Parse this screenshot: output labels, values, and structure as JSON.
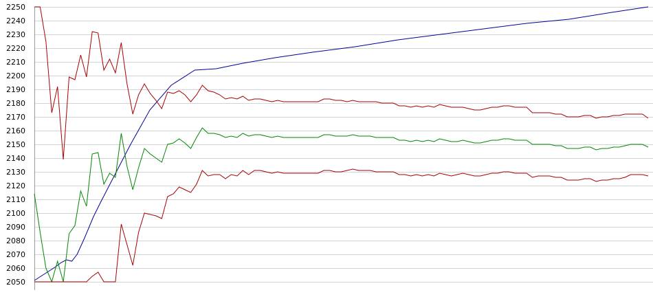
{
  "chart_data": {
    "type": "line",
    "title": "",
    "xlabel": "",
    "ylabel": "",
    "ylim": [
      2050,
      2250
    ],
    "y_ticks": [
      "2050",
      "2060",
      "2070",
      "2080",
      "2090",
      "2100",
      "2110",
      "2120",
      "2130",
      "2140",
      "2150",
      "2160",
      "2170",
      "2180",
      "2190",
      "2200",
      "2210",
      "2220",
      "2230",
      "2240",
      "2250"
    ],
    "grid": "horizontal",
    "legend": "none",
    "x_count": 121,
    "series": [
      {
        "color": "#000099",
        "points": [
          [
            0,
            2051
          ],
          [
            10,
            2056
          ],
          [
            20,
            2061
          ],
          [
            25,
            2064
          ],
          [
            30,
            2066
          ],
          [
            35,
            2065
          ],
          [
            40,
            2070
          ],
          [
            47,
            2082
          ],
          [
            55,
            2097
          ],
          [
            62,
            2108
          ],
          [
            70,
            2120
          ],
          [
            78,
            2132
          ],
          [
            90,
            2150
          ],
          [
            108,
            2175
          ],
          [
            128,
            2193
          ],
          [
            150,
            2204
          ],
          [
            170,
            2205
          ],
          [
            195,
            2209
          ],
          [
            225,
            2213
          ],
          [
            260,
            2217
          ],
          [
            300,
            2221
          ],
          [
            340,
            2226
          ],
          [
            380,
            2230
          ],
          [
            420,
            2234
          ],
          [
            460,
            2238
          ],
          [
            500,
            2241
          ],
          [
            540,
            2246
          ],
          [
            574,
            2250
          ]
        ]
      },
      {
        "color": "#aa0000",
        "values": [
          2250,
          2250,
          2225,
          2173,
          2192,
          2139,
          2199,
          2197,
          2215,
          2199,
          2232,
          2231,
          2204,
          2212,
          2202,
          2224,
          2194,
          2172,
          2186,
          2194,
          2187,
          2182,
          2176,
          2188,
          2187,
          2189,
          2186,
          2181,
          2186,
          2193,
          2189,
          2188,
          2186,
          2183,
          2184,
          2183,
          2185,
          2182,
          2183,
          2183,
          2182,
          2181,
          2182,
          2181,
          2181,
          2181,
          2181,
          2181,
          2181,
          2181,
          2183,
          2183,
          2182,
          2182,
          2181,
          2182,
          2181,
          2181,
          2181,
          2181,
          2180,
          2180,
          2180,
          2178,
          2178,
          2177,
          2178,
          2177,
          2178,
          2177,
          2179,
          2178,
          2177,
          2177,
          2177,
          2176,
          2175,
          2175,
          2176,
          2177,
          2177,
          2178,
          2178,
          2177,
          2177,
          2177,
          2173,
          2173,
          2173,
          2173,
          2172,
          2172,
          2170,
          2170,
          2170,
          2171,
          2171,
          2169,
          2170,
          2170,
          2171,
          2171,
          2172,
          2172,
          2172,
          2172,
          2169
        ]
      },
      {
        "color": "#008800",
        "values": [
          2114,
          2086,
          2060,
          2050,
          2065,
          2050,
          2085,
          2091,
          2116,
          2105,
          2143,
          2144,
          2121,
          2129,
          2126,
          2158,
          2134,
          2117,
          2133,
          2147,
          2143,
          2140,
          2137,
          2150,
          2151,
          2154,
          2151,
          2147,
          2155,
          2162,
          2158,
          2158,
          2157,
          2155,
          2156,
          2155,
          2158,
          2156,
          2157,
          2157,
          2156,
          2155,
          2156,
          2155,
          2155,
          2155,
          2155,
          2155,
          2155,
          2155,
          2157,
          2157,
          2156,
          2156,
          2156,
          2157,
          2156,
          2156,
          2156,
          2155,
          2155,
          2155,
          2155,
          2153,
          2153,
          2152,
          2153,
          2152,
          2153,
          2152,
          2154,
          2153,
          2152,
          2152,
          2153,
          2152,
          2151,
          2151,
          2152,
          2153,
          2153,
          2154,
          2154,
          2153,
          2153,
          2153,
          2150,
          2150,
          2150,
          2150,
          2149,
          2149,
          2147,
          2147,
          2147,
          2148,
          2148,
          2146,
          2147,
          2147,
          2148,
          2148,
          2149,
          2150,
          2150,
          2150,
          2148
        ]
      },
      {
        "color": "#aa0000",
        "values": [
          2050,
          2050,
          2050,
          2050,
          2050,
          2050,
          2050,
          2050,
          2050,
          2050,
          2054,
          2057,
          2050,
          2050,
          2050,
          2092,
          2077,
          2062,
          2086,
          2100,
          2099,
          2098,
          2096,
          2112,
          2114,
          2119,
          2117,
          2115,
          2121,
          2131,
          2127,
          2128,
          2128,
          2125,
          2128,
          2127,
          2131,
          2128,
          2131,
          2131,
          2130,
          2129,
          2130,
          2129,
          2129,
          2129,
          2129,
          2129,
          2129,
          2129,
          2131,
          2131,
          2130,
          2130,
          2131,
          2132,
          2131,
          2131,
          2131,
          2130,
          2130,
          2130,
          2130,
          2128,
          2128,
          2127,
          2128,
          2127,
          2128,
          2127,
          2129,
          2128,
          2127,
          2128,
          2129,
          2128,
          2127,
          2127,
          2128,
          2129,
          2129,
          2130,
          2130,
          2129,
          2129,
          2129,
          2126,
          2127,
          2127,
          2127,
          2126,
          2126,
          2124,
          2124,
          2124,
          2125,
          2125,
          2123,
          2124,
          2124,
          2125,
          2125,
          2126,
          2128,
          2128,
          2128,
          2127
        ]
      }
    ]
  }
}
